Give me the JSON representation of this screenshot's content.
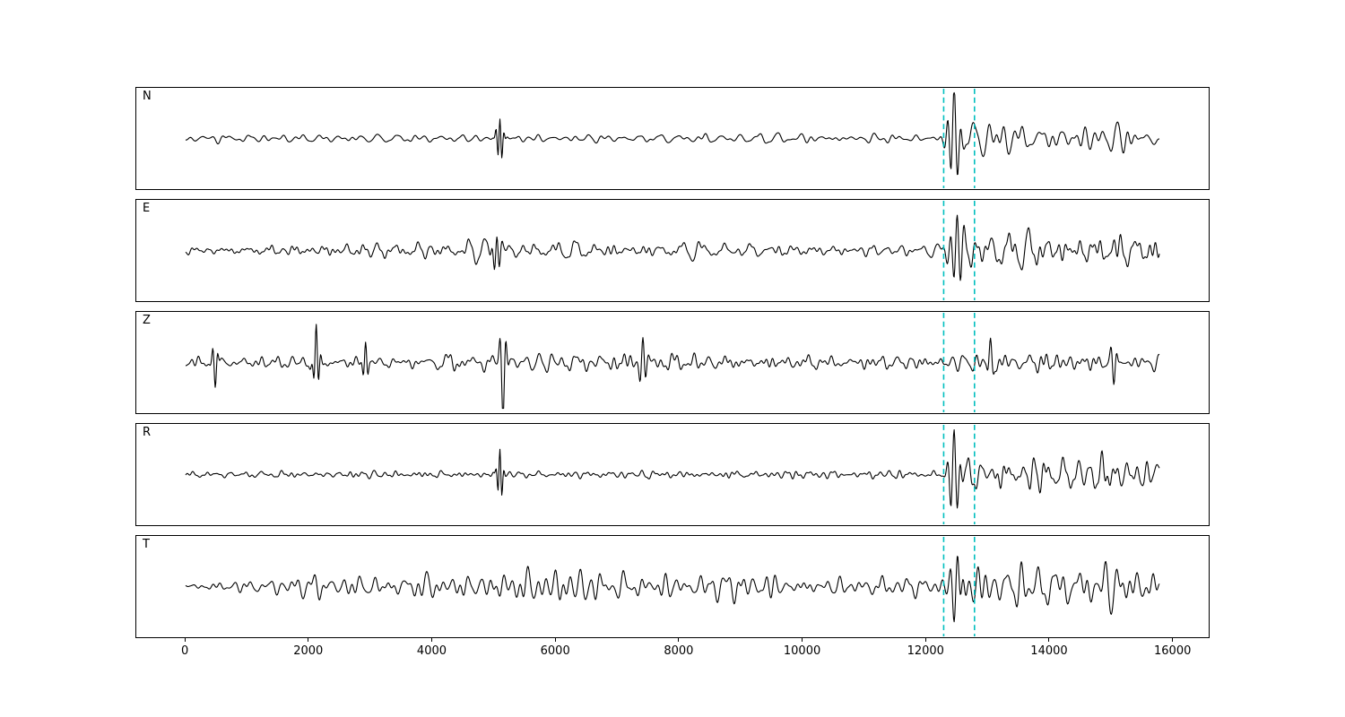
{
  "figure": {
    "background": "#ffffff",
    "trace_color": "#000000",
    "marker_color": "#00bfbf",
    "marker_style": "dashed"
  },
  "chart_data": {
    "type": "line",
    "title": "",
    "xlabel": "",
    "ylabel": "",
    "legend": "none",
    "grid": false,
    "x_range": [
      -800,
      16600
    ],
    "x_ticks": [
      0,
      2000,
      4000,
      6000,
      8000,
      10000,
      12000,
      14000,
      16000
    ],
    "trace_x_extent": [
      0,
      15800
    ],
    "vertical_lines": [
      12300,
      12800
    ],
    "noise": {
      "components": 45,
      "period_min": 80,
      "period_max": 420,
      "norm_factor": 2.6
    },
    "panels": [
      {
        "label": "N",
        "seed": 1,
        "envelope": [
          [
            0,
            0.1
          ],
          [
            5000,
            0.11
          ],
          [
            12250,
            0.12
          ],
          [
            12600,
            0.45
          ],
          [
            13500,
            0.42
          ],
          [
            15800,
            0.36
          ]
        ],
        "spikes": [
          {
            "x": 5100,
            "amp": 0.5,
            "width": 60,
            "freq": 0.015
          },
          {
            "x": 12470,
            "amp": 1.0,
            "width": 110,
            "freq": 0.009
          }
        ]
      },
      {
        "label": "E",
        "seed": 2,
        "envelope": [
          [
            0,
            0.1
          ],
          [
            2500,
            0.17
          ],
          [
            5200,
            0.23
          ],
          [
            8500,
            0.22
          ],
          [
            11500,
            0.17
          ],
          [
            12250,
            0.17
          ],
          [
            12700,
            0.5
          ],
          [
            13500,
            0.55
          ],
          [
            15800,
            0.5
          ]
        ],
        "spikes": [
          {
            "x": 5050,
            "amp": 0.4,
            "width": 80,
            "freq": 0.012
          },
          {
            "x": 12520,
            "amp": 0.85,
            "width": 110,
            "freq": 0.009
          }
        ]
      },
      {
        "label": "Z",
        "seed": 3,
        "envelope": [
          [
            0,
            0.15
          ],
          [
            4000,
            0.18
          ],
          [
            7000,
            0.26
          ],
          [
            9500,
            0.2
          ],
          [
            12250,
            0.17
          ],
          [
            12700,
            0.3
          ],
          [
            13500,
            0.25
          ],
          [
            15800,
            0.2
          ]
        ],
        "spikes": [
          {
            "x": 480,
            "amp": -0.55,
            "width": 50,
            "freq": 0.011
          },
          {
            "x": 2120,
            "amp": 0.8,
            "width": 55,
            "freq": 0.012
          },
          {
            "x": 2920,
            "amp": 0.45,
            "width": 50,
            "freq": 0.012
          },
          {
            "x": 5150,
            "amp": -1.35,
            "width": 60,
            "freq": 0.009
          },
          {
            "x": 7420,
            "amp": 0.6,
            "width": 70,
            "freq": 0.01
          },
          {
            "x": 13060,
            "amp": 0.45,
            "width": 60,
            "freq": 0.01
          },
          {
            "x": 15060,
            "amp": -0.45,
            "width": 60,
            "freq": 0.01
          }
        ]
      },
      {
        "label": "R",
        "seed": 4,
        "envelope": [
          [
            0,
            0.09
          ],
          [
            5000,
            0.1
          ],
          [
            12250,
            0.12
          ],
          [
            12700,
            0.48
          ],
          [
            13500,
            0.45
          ],
          [
            15800,
            0.38
          ]
        ],
        "spikes": [
          {
            "x": 5100,
            "amp": 0.55,
            "width": 55,
            "freq": 0.015
          },
          {
            "x": 12470,
            "amp": 0.95,
            "width": 110,
            "freq": 0.009
          }
        ]
      },
      {
        "label": "T",
        "seed": 5,
        "envelope": [
          [
            0,
            0.16
          ],
          [
            3000,
            0.32
          ],
          [
            5800,
            0.46
          ],
          [
            8200,
            0.42
          ],
          [
            10500,
            0.34
          ],
          [
            12250,
            0.3
          ],
          [
            12700,
            0.6
          ],
          [
            13800,
            0.75
          ],
          [
            15000,
            0.65
          ],
          [
            15800,
            0.55
          ]
        ],
        "spikes": [
          {
            "x": 12520,
            "amp": 0.75,
            "width": 110,
            "freq": 0.009
          }
        ]
      }
    ]
  }
}
